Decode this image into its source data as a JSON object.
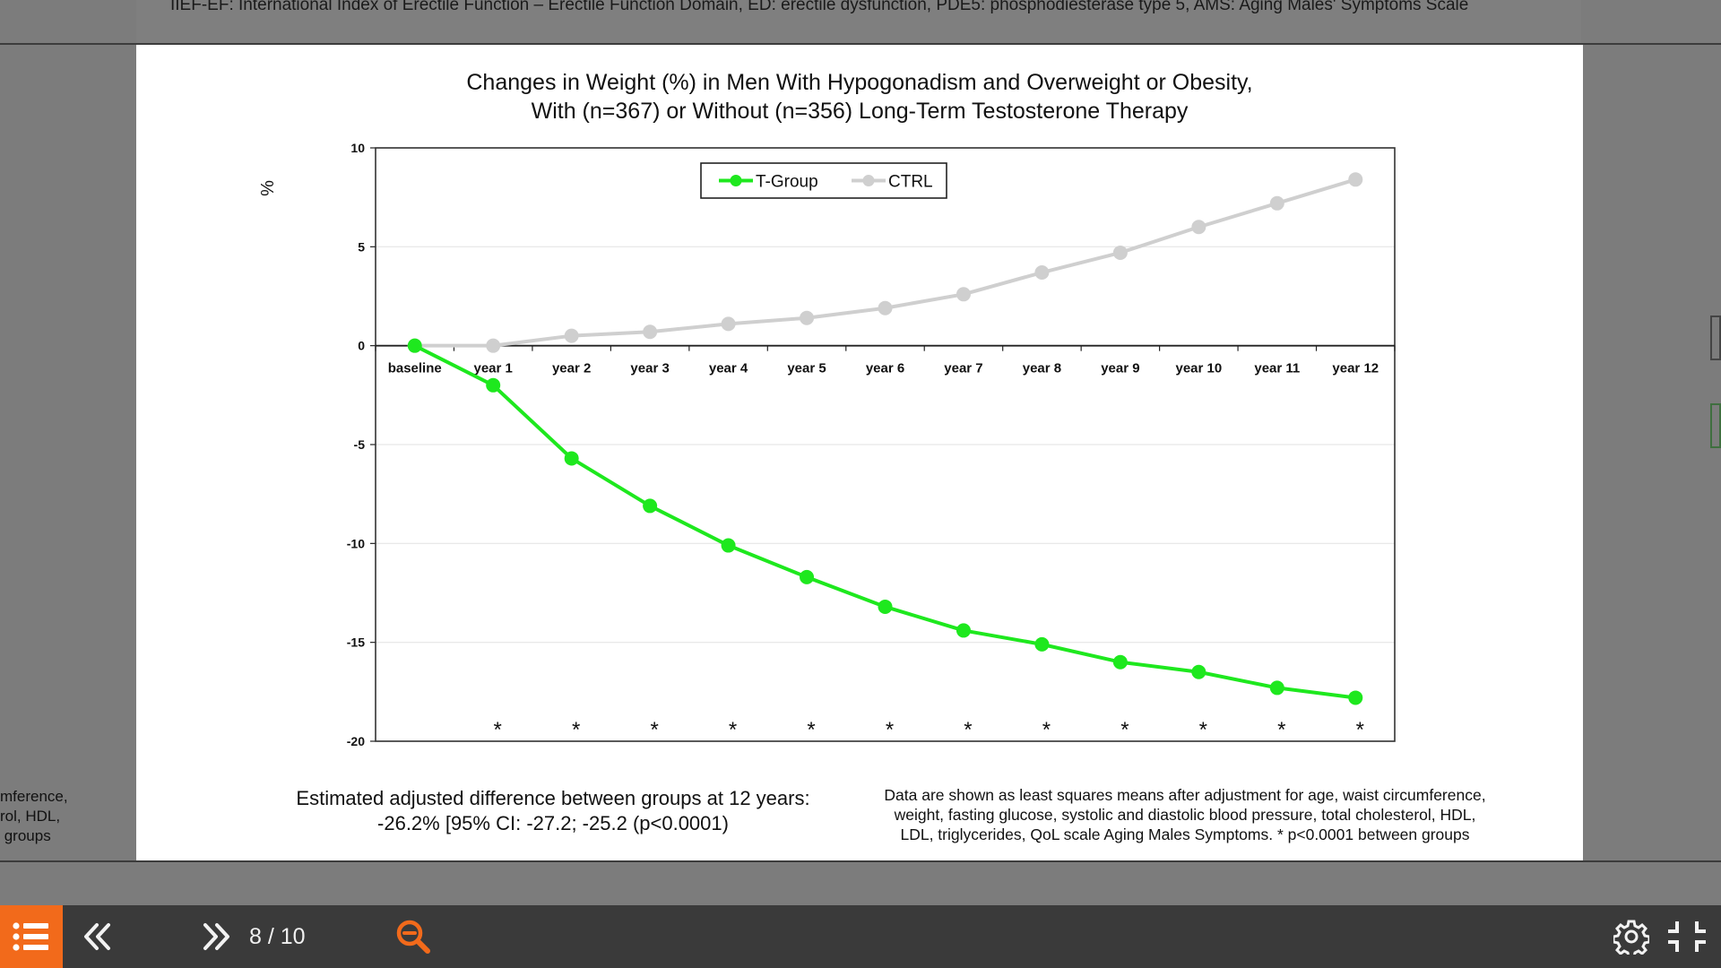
{
  "viewer": {
    "prev_slide_text": "IIEF-EF: International Index of Erectile Function – Erectile Function Domain, ED: erectile dysfunction, PDE5: phosphodiesterase type 5, AMS: Aging Males' Symptoms Scale",
    "left_fragment": "mference,\nrol, HDL,\n groups",
    "page_indicator": "8 / 10",
    "colors": {
      "accent": "#f26a1b",
      "toolbar": "#3a3a3a",
      "t_group": "#1ee81e",
      "ctrl": "#cfcfcf"
    },
    "icons": [
      "menu-list-icon",
      "double-chevron-left-icon",
      "double-chevron-right-icon",
      "zoom-out-icon",
      "gear-icon",
      "exit-fullscreen-icon"
    ]
  },
  "slide": {
    "title_line1": "Changes in Weight (%) in Men With Hypogonadism and Overweight or Obesity,",
    "title_line2": "With (n=367) or Without (n=356) Long-Term Testosterone Therapy",
    "note_left_line1": "Estimated adjusted difference between groups at 12 years:",
    "note_left_line2": "-26.2% [95% CI: -27.2; -25.2 (p<0.0001)",
    "note_right_line1": "Data are shown as least squares means after adjustment for age, waist circumference,",
    "note_right_line2": "weight, fasting glucose, systolic and diastolic blood pressure, total cholesterol, HDL,",
    "note_right_line3": "LDL, triglycerides, QoL scale Aging Males Symptoms. * p<0.0001 between groups"
  },
  "chart_data": {
    "type": "line",
    "title": "",
    "xlabel": "",
    "ylabel": "%",
    "categories": [
      "baseline",
      "year 1",
      "year 2",
      "year 3",
      "year 4",
      "year 5",
      "year 6",
      "year 7",
      "year 8",
      "year 9",
      "year 10",
      "year 11",
      "year 12"
    ],
    "ylim": [
      -20,
      10
    ],
    "yticks": [
      10,
      5,
      0,
      -5,
      -10,
      -15,
      -20
    ],
    "grid": true,
    "legend_position": "top-center",
    "series": [
      {
        "name": "T-Group",
        "color": "#1ee81e",
        "values": [
          0,
          -2.0,
          -5.7,
          -8.1,
          -10.1,
          -11.7,
          -13.2,
          -14.4,
          -15.1,
          -16.0,
          -16.5,
          -17.3,
          -17.8
        ]
      },
      {
        "name": "CTRL",
        "color": "#cfcfcf",
        "values": [
          0,
          0,
          0.5,
          0.7,
          1.1,
          1.4,
          1.9,
          2.6,
          3.7,
          4.7,
          6.0,
          7.2,
          8.4
        ]
      }
    ],
    "significance_marker": "*",
    "significance_categories": [
      "year 1",
      "year 2",
      "year 3",
      "year 4",
      "year 5",
      "year 6",
      "year 7",
      "year 8",
      "year 9",
      "year 10",
      "year 11",
      "year 12"
    ]
  }
}
